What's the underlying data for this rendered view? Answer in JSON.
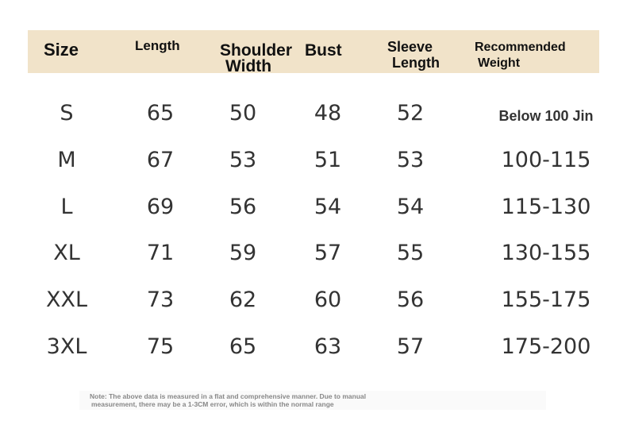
{
  "table": {
    "columns": [
      {
        "lines": [
          "Size"
        ]
      },
      {
        "lines": [
          "Length"
        ]
      },
      {
        "lines": [
          "Shoulder",
          "Width"
        ]
      },
      {
        "lines": [
          "Bust"
        ]
      },
      {
        "lines": [
          "Sleeve",
          "Length"
        ]
      },
      {
        "lines": [
          "Recommended",
          "Weight"
        ]
      }
    ],
    "rows": [
      [
        "S",
        65,
        50,
        48,
        52,
        "Below 100 Jin"
      ],
      [
        "M",
        67,
        53,
        51,
        53,
        "100-115"
      ],
      [
        "L",
        69,
        56,
        54,
        54,
        "115-130"
      ],
      [
        "XL",
        71,
        59,
        57,
        55,
        "130-155"
      ],
      [
        "XXL",
        73,
        62,
        60,
        56,
        "155-175"
      ],
      [
        "3XL",
        75,
        65,
        63,
        57,
        "175-200"
      ]
    ]
  },
  "note": {
    "lines": [
      "Note: The above data is measured in a flat and comprehensive manner. Due to manual",
      "measurement, there may be a 1-3CM error, which is within the normal range"
    ]
  }
}
